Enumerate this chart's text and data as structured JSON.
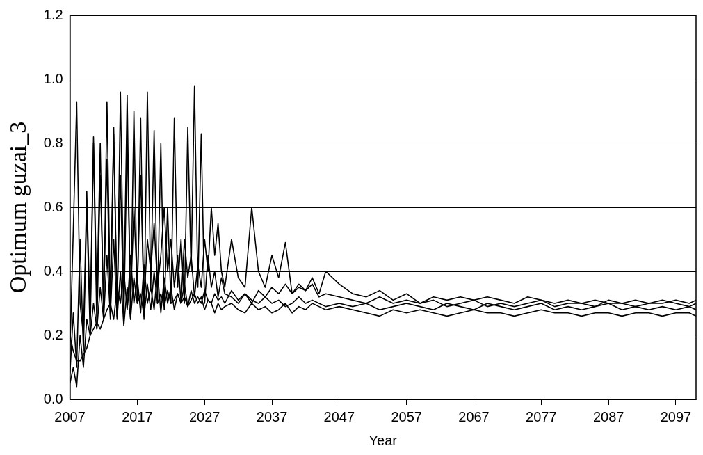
{
  "chart_data": {
    "type": "line",
    "xlabel": "Year",
    "ylabel": "Optimum guzai_3",
    "x": [
      2007,
      2007.5,
      2008,
      2008.5,
      2009,
      2009.5,
      2010,
      2010.5,
      2011,
      2011.5,
      2012,
      2012.5,
      2013,
      2013.5,
      2014,
      2014.5,
      2015,
      2015.5,
      2016,
      2016.5,
      2017,
      2017.5,
      2018,
      2018.5,
      2019,
      2019.5,
      2020,
      2020.5,
      2021,
      2021.5,
      2022,
      2022.5,
      2023,
      2023.5,
      2024,
      2024.5,
      2025,
      2025.5,
      2026,
      2026.5,
      2027,
      2027.5,
      2028,
      2028.5,
      2029,
      2029.5,
      2030,
      2031,
      2032,
      2033,
      2034,
      2035,
      2036,
      2037,
      2038,
      2039,
      2040,
      2041,
      2042,
      2043,
      2044,
      2045,
      2047,
      2049,
      2051,
      2053,
      2055,
      2057,
      2059,
      2061,
      2063,
      2065,
      2067,
      2069,
      2071,
      2073,
      2075,
      2077,
      2079,
      2081,
      2083,
      2085,
      2087,
      2089,
      2091,
      2093,
      2095,
      2097,
      2099,
      2100
    ],
    "series": [
      {
        "color": "#000000",
        "values": [
          0.15,
          0.53,
          0.93,
          0.3,
          0.2,
          0.65,
          0.25,
          0.82,
          0.3,
          0.8,
          0.25,
          0.93,
          0.3,
          0.85,
          0.26,
          0.96,
          0.3,
          0.95,
          0.25,
          0.9,
          0.3,
          0.88,
          0.25,
          0.96,
          0.35,
          0.84,
          0.3,
          0.8,
          0.28,
          0.6,
          0.3,
          0.88,
          0.35,
          0.5,
          0.3,
          0.85,
          0.4,
          0.98,
          0.35,
          0.83,
          0.3,
          0.45,
          0.35,
          0.4,
          0.32,
          0.38,
          0.33,
          0.32,
          0.3,
          0.33,
          0.31,
          0.3,
          0.32,
          0.3,
          0.31,
          0.29,
          0.3,
          0.32,
          0.3,
          0.31,
          0.3,
          0.29,
          0.3,
          0.29,
          0.3,
          0.28,
          0.29,
          0.3,
          0.29,
          0.28,
          0.3,
          0.29,
          0.28,
          0.3,
          0.29,
          0.28,
          0.29,
          0.3,
          0.28,
          0.29,
          0.28,
          0.29,
          0.3,
          0.28,
          0.29,
          0.28,
          0.29,
          0.28,
          0.29,
          0.28
        ]
      },
      {
        "color": "#000000",
        "values": [
          0.08,
          0.27,
          0.1,
          0.5,
          0.15,
          0.6,
          0.2,
          0.8,
          0.22,
          0.7,
          0.3,
          0.75,
          0.25,
          0.83,
          0.3,
          0.7,
          0.25,
          0.82,
          0.3,
          0.6,
          0.35,
          0.7,
          0.3,
          0.5,
          0.4,
          0.55,
          0.35,
          0.45,
          0.6,
          0.4,
          0.5,
          0.35,
          0.45,
          0.3,
          0.5,
          0.38,
          0.45,
          0.32,
          0.42,
          0.35,
          0.5,
          0.4,
          0.6,
          0.45,
          0.55,
          0.4,
          0.35,
          0.5,
          0.38,
          0.35,
          0.6,
          0.4,
          0.35,
          0.45,
          0.38,
          0.49,
          0.33,
          0.35,
          0.34,
          0.36,
          0.32,
          0.33,
          0.32,
          0.31,
          0.3,
          0.32,
          0.3,
          0.31,
          0.3,
          0.31,
          0.29,
          0.3,
          0.31,
          0.29,
          0.3,
          0.29,
          0.3,
          0.31,
          0.29,
          0.3,
          0.3,
          0.29,
          0.31,
          0.3,
          0.29,
          0.3,
          0.31,
          0.3,
          0.29,
          0.3
        ]
      },
      {
        "color": "#000000",
        "values": [
          0.2,
          0.15,
          0.12,
          0.12,
          0.14,
          0.16,
          0.2,
          0.22,
          0.24,
          0.22,
          0.25,
          0.28,
          0.3,
          0.25,
          0.35,
          0.3,
          0.4,
          0.28,
          0.45,
          0.3,
          0.38,
          0.27,
          0.42,
          0.3,
          0.35,
          0.28,
          0.4,
          0.27,
          0.38,
          0.3,
          0.35,
          0.28,
          0.33,
          0.3,
          0.36,
          0.29,
          0.34,
          0.3,
          0.32,
          0.3,
          0.34,
          0.31,
          0.3,
          0.33,
          0.31,
          0.32,
          0.3,
          0.34,
          0.31,
          0.33,
          0.3,
          0.34,
          0.32,
          0.35,
          0.33,
          0.36,
          0.33,
          0.36,
          0.34,
          0.38,
          0.33,
          0.4,
          0.36,
          0.33,
          0.32,
          0.34,
          0.31,
          0.33,
          0.3,
          0.32,
          0.31,
          0.32,
          0.31,
          0.32,
          0.31,
          0.3,
          0.32,
          0.31,
          0.3,
          0.31,
          0.3,
          0.31,
          0.3,
          0.3,
          0.31,
          0.3,
          0.3,
          0.31,
          0.3,
          0.31
        ]
      },
      {
        "color": "#000000",
        "values": [
          0.05,
          0.1,
          0.04,
          0.2,
          0.1,
          0.25,
          0.2,
          0.3,
          0.22,
          0.35,
          0.25,
          0.45,
          0.26,
          0.5,
          0.25,
          0.4,
          0.23,
          0.35,
          0.25,
          0.38,
          0.3,
          0.33,
          0.26,
          0.36,
          0.28,
          0.4,
          0.3,
          0.33,
          0.29,
          0.34,
          0.3,
          0.31,
          0.33,
          0.3,
          0.32,
          0.29,
          0.31,
          0.33,
          0.3,
          0.32,
          0.28,
          0.31,
          0.3,
          0.27,
          0.3,
          0.28,
          0.29,
          0.3,
          0.28,
          0.27,
          0.3,
          0.28,
          0.29,
          0.27,
          0.28,
          0.3,
          0.27,
          0.29,
          0.28,
          0.3,
          0.29,
          0.28,
          0.29,
          0.28,
          0.27,
          0.26,
          0.28,
          0.27,
          0.28,
          0.27,
          0.26,
          0.27,
          0.28,
          0.27,
          0.27,
          0.26,
          0.27,
          0.28,
          0.27,
          0.27,
          0.26,
          0.27,
          0.27,
          0.26,
          0.27,
          0.27,
          0.26,
          0.27,
          0.27,
          0.26
        ]
      }
    ],
    "xlim": [
      2007,
      2100
    ],
    "xticks": [
      2007,
      2017,
      2027,
      2037,
      2047,
      2057,
      2067,
      2077,
      2087,
      2097
    ],
    "ylim": [
      0,
      1.2
    ],
    "yticks": [
      {
        "value": 0,
        "label": "0.0"
      },
      {
        "value": 0.2,
        "label": "0.2"
      },
      {
        "value": 0.4,
        "label": "0.4"
      },
      {
        "value": 0.6,
        "label": "0.6"
      },
      {
        "value": 0.8,
        "label": "0.8"
      },
      {
        "value": 1,
        "label": "1.0"
      },
      {
        "value": 1.2,
        "label": "1.2"
      }
    ],
    "grid": "y",
    "legend": false,
    "marker": "none",
    "line_style": "solid"
  }
}
